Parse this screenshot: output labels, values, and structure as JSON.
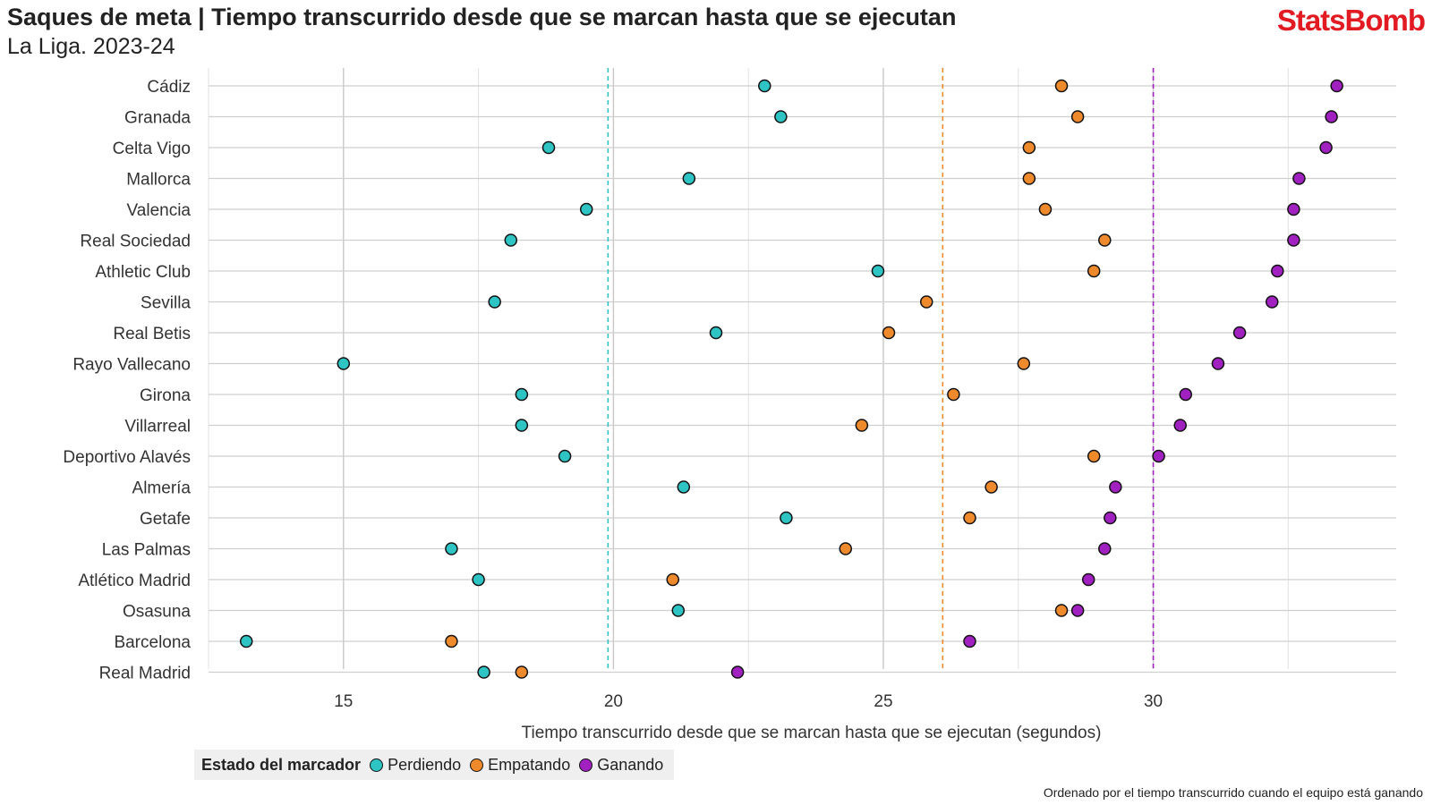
{
  "header": {
    "title": "Saques de meta | Tiempo transcurrido desde que se marcan hasta que se ejecutan",
    "subtitle": "La Liga. 2023-24",
    "brand": "StatsBomb"
  },
  "caption": "Ordenado por el tiempo transcurrido cuando el equipo está ganando",
  "legend": {
    "title": "Estado del marcador",
    "items": [
      {
        "label": "Perdiendo",
        "color": "#2ec4c4"
      },
      {
        "label": "Empatando",
        "color": "#ef8a2c"
      },
      {
        "label": "Ganando",
        "color": "#a020c0"
      }
    ]
  },
  "chart_data": {
    "type": "scatter",
    "xlabel": "Tiempo transcurrido desde que se marcan hasta que se ejecutan (segundos)",
    "xlim": [
      12.5,
      34.5
    ],
    "xticks": [
      15,
      20,
      25,
      30
    ],
    "grid": true,
    "legend_position": "bottom-left",
    "categories": [
      "Cádiz",
      "Granada",
      "Celta Vigo",
      "Mallorca",
      "Valencia",
      "Real Sociedad",
      "Athletic Club",
      "Sevilla",
      "Real Betis",
      "Rayo Vallecano",
      "Girona",
      "Villarreal",
      "Deportivo Alavés",
      "Almería",
      "Getafe",
      "Las Palmas",
      "Atlético Madrid",
      "Osasuna",
      "Barcelona",
      "Real Madrid"
    ],
    "series": [
      {
        "name": "Perdiendo",
        "color": "#2ec4c4",
        "values": [
          22.8,
          23.1,
          18.8,
          21.4,
          19.5,
          18.1,
          24.9,
          17.8,
          21.9,
          15.0,
          18.3,
          18.3,
          19.1,
          21.3,
          23.2,
          17.0,
          17.5,
          21.2,
          13.2,
          17.6
        ]
      },
      {
        "name": "Empatando",
        "color": "#ef8a2c",
        "values": [
          28.3,
          28.6,
          27.7,
          27.7,
          28.0,
          29.1,
          28.9,
          25.8,
          25.1,
          27.6,
          26.3,
          24.6,
          28.9,
          27.0,
          26.6,
          24.3,
          21.1,
          28.3,
          17.0,
          18.3
        ]
      },
      {
        "name": "Ganando",
        "color": "#a020c0",
        "values": [
          33.4,
          33.3,
          33.2,
          32.7,
          32.6,
          32.6,
          32.3,
          32.2,
          31.6,
          31.2,
          30.6,
          30.5,
          30.1,
          29.3,
          29.2,
          29.1,
          28.8,
          28.6,
          26.6,
          22.3
        ]
      }
    ],
    "mean_lines": [
      {
        "series": "Perdiendo",
        "value": 19.9,
        "color": "#2ec4c4"
      },
      {
        "series": "Empatando",
        "value": 26.1,
        "color": "#ef8a2c"
      },
      {
        "series": "Ganando",
        "value": 30.0,
        "color": "#a020c0"
      }
    ]
  }
}
